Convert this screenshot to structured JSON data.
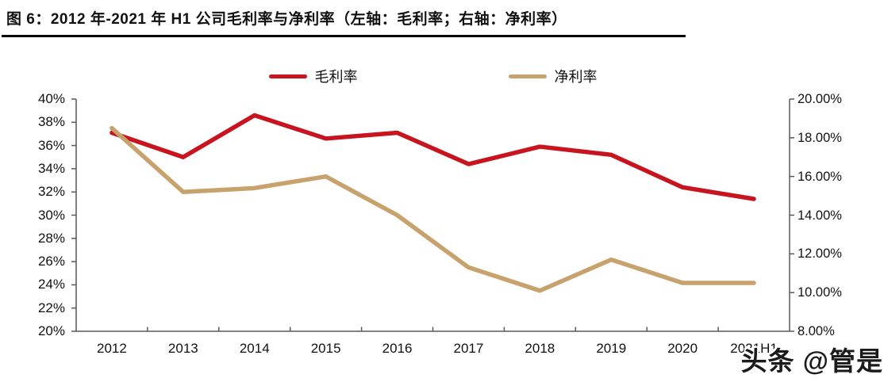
{
  "header": {
    "title": "图 6：2012 年-2021 年 H1 公司毛利率与净利率（左轴：毛利率；右轴：净利率）"
  },
  "watermark": {
    "text": "头条 @管是"
  },
  "colors": {
    "gross_margin_line": "#C8141E",
    "net_margin_line": "#C7A26D",
    "axis": "#595959",
    "text": "#111111"
  },
  "chart_data": {
    "type": "line",
    "title": "2012 年-2021 年 H1 公司毛利率与净利率",
    "categories": [
      "2012",
      "2013",
      "2014",
      "2015",
      "2016",
      "2017",
      "2018",
      "2019",
      "2020",
      "2021H1"
    ],
    "series": [
      {
        "key": "gross-margin",
        "name": "毛利率",
        "axis": "left",
        "color": "#C8141E",
        "values": [
          37.1,
          35.0,
          38.6,
          36.6,
          37.1,
          34.4,
          35.9,
          35.2,
          32.4,
          31.4
        ]
      },
      {
        "key": "net-margin",
        "name": "净利率",
        "axis": "right",
        "color": "#C7A26D",
        "values": [
          18.5,
          15.2,
          15.4,
          16.0,
          14.0,
          11.3,
          10.1,
          11.7,
          10.5,
          10.5
        ]
      }
    ],
    "left_axis": {
      "min": 20,
      "max": 40,
      "step": 2,
      "format": "{v}%"
    },
    "right_axis": {
      "min": 8,
      "max": 20,
      "step": 2,
      "format": "{v}.00%"
    },
    "legend_position": "top-center",
    "grid": false
  }
}
